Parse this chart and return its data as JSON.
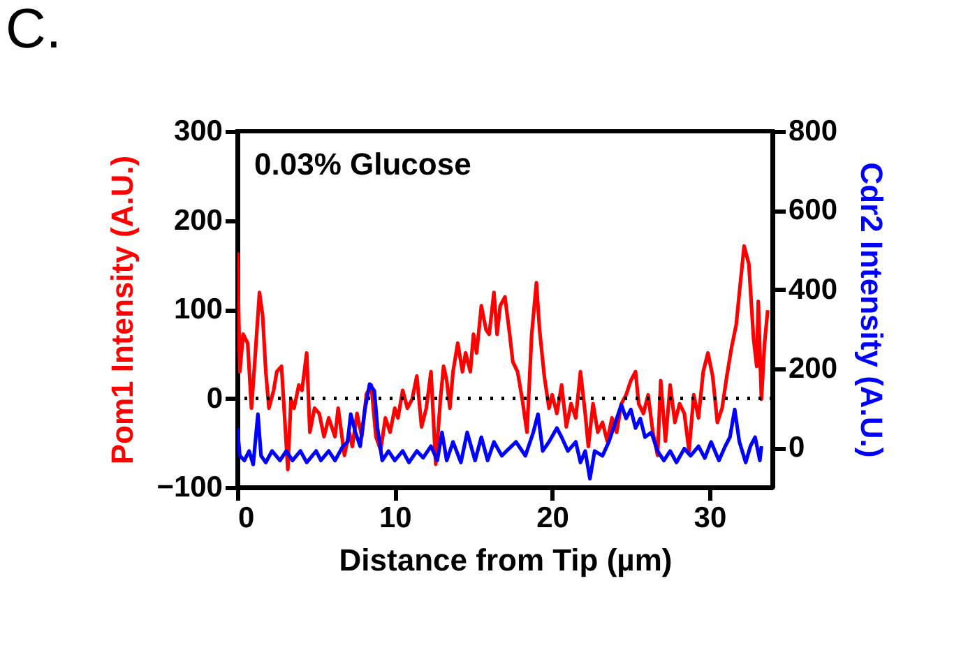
{
  "chart_data": {
    "type": "line",
    "title": "C.",
    "xlabel": "Distance from Tip (µm)",
    "ylabel": "Pom1 Intensity (A.U.)",
    "y2label": "Cdr2 Intensity (A.U.)",
    "annotations": [
      "0.03%  Glucose"
    ],
    "xlim": [
      0,
      34
    ],
    "xticks": [
      0,
      10,
      20,
      30
    ],
    "ylim": [
      -100,
      300
    ],
    "yticks": [
      -100,
      0,
      100,
      200,
      300
    ],
    "y2lim": [
      -100,
      800
    ],
    "y2ticks": [
      0,
      200,
      400,
      600,
      800
    ],
    "grid": false,
    "line_style": "solid",
    "marker": "none",
    "ref_lines": [
      {
        "axis": "y",
        "value": 0,
        "color": "#000000",
        "line_style": "dotted"
      }
    ],
    "series": [
      {
        "color": "#ff0000",
        "axis": "y",
        "x": [
          0,
          0.15,
          0.36,
          0.65,
          0.89,
          1.1,
          1.4,
          1.6,
          1.8,
          2.0,
          2.3,
          2.5,
          2.8,
          3.0,
          3.2,
          3.4,
          3.6,
          3.9,
          4.1,
          4.4,
          4.6,
          4.9,
          5.2,
          5.5,
          5.8,
          6.2,
          6.4,
          6.8,
          7.1,
          7.3,
          7.6,
          7.9,
          8.2,
          8.5,
          8.8,
          9.1,
          9.4,
          9.7,
          10.0,
          10.2,
          10.5,
          10.8,
          11.1,
          11.4,
          11.7,
          12.0,
          12.3,
          12.6,
          12.9,
          13.1,
          13.3,
          13.5,
          13.7,
          14.0,
          14.3,
          14.5,
          14.8,
          15.0,
          15.2,
          15.5,
          15.8,
          16.0,
          16.3,
          16.5,
          16.7,
          17.0,
          17.3,
          17.5,
          17.8,
          18.1,
          18.4,
          18.7,
          19.0,
          19.2,
          19.5,
          19.8,
          20.0,
          20.3,
          20.6,
          20.9,
          21.2,
          21.5,
          21.8,
          22.1,
          22.3,
          22.6,
          22.9,
          23.2,
          23.5,
          23.8,
          24.1,
          24.4,
          24.7,
          25.0,
          25.3,
          25.5,
          25.8,
          26.1,
          26.4,
          26.7,
          26.9,
          27.2,
          27.5,
          27.8,
          28.1,
          28.4,
          28.7,
          29.0,
          29.3,
          29.6,
          29.9,
          30.2,
          30.5,
          30.8,
          31.1,
          31.4,
          31.7,
          31.9,
          32.2,
          32.5,
          32.8,
          33.0,
          33.1,
          33.3,
          33.5,
          33.7
        ],
        "values": [
          164,
          30,
          72,
          62,
          -11,
          41,
          119,
          93,
          30,
          -11,
          9,
          30,
          36,
          -22,
          -80,
          -1,
          -11,
          15,
          9,
          51,
          -38,
          -11,
          -17,
          -43,
          -22,
          -43,
          -11,
          -64,
          -38,
          -54,
          -17,
          -43,
          5,
          15,
          -43,
          -58,
          -22,
          -38,
          -11,
          -22,
          9,
          -11,
          -1,
          25,
          -32,
          -11,
          30,
          -74,
          -1,
          36,
          20,
          -11,
          30,
          62,
          30,
          51,
          30,
          72,
          51,
          104,
          77,
          72,
          119,
          72,
          104,
          114,
          72,
          41,
          30,
          -1,
          -38,
          72,
          130,
          77,
          25,
          -11,
          4,
          -17,
          15,
          -32,
          -6,
          -22,
          30,
          -17,
          -54,
          -6,
          -38,
          -27,
          -48,
          -22,
          -38,
          -6,
          4,
          20,
          30,
          -6,
          -17,
          4,
          -38,
          -64,
          20,
          -48,
          15,
          -27,
          -6,
          -17,
          -59,
          4,
          -22,
          30,
          51,
          25,
          -27,
          -11,
          25,
          57,
          83,
          119,
          171,
          151,
          67,
          36,
          109,
          -1,
          62,
          99
        ]
      },
      {
        "color": "#0000ff",
        "axis": "y2",
        "x": [
          0,
          0.15,
          0.44,
          0.74,
          1.0,
          1.3,
          1.5,
          1.8,
          2.2,
          2.7,
          3.1,
          3.5,
          4.0,
          4.4,
          5.0,
          5.3,
          5.8,
          6.2,
          6.7,
          7.0,
          7.2,
          7.5,
          7.8,
          8.1,
          8.4,
          8.7,
          8.9,
          9.2,
          9.6,
          10.0,
          10.5,
          10.9,
          11.4,
          11.8,
          12.3,
          12.7,
          13.0,
          13.3,
          13.7,
          14.2,
          14.6,
          15.1,
          15.5,
          15.9,
          16.3,
          16.8,
          17.1,
          17.7,
          18.3,
          18.8,
          19.1,
          19.4,
          19.8,
          20.3,
          20.6,
          21.0,
          21.5,
          21.8,
          22.1,
          22.4,
          22.7,
          23.2,
          23.6,
          24.0,
          24.4,
          24.7,
          25.0,
          25.3,
          25.6,
          25.9,
          26.3,
          26.7,
          27.1,
          27.5,
          27.9,
          28.4,
          28.8,
          29.3,
          29.7,
          30.1,
          30.6,
          31.0,
          31.3,
          31.6,
          31.9,
          32.3,
          32.6,
          32.9,
          33.2,
          33.3
        ],
        "values": [
          50,
          -20,
          -32,
          -8,
          -42,
          85,
          -20,
          -37,
          -8,
          -32,
          -8,
          -32,
          -8,
          -37,
          -8,
          -32,
          -8,
          -32,
          4,
          15,
          85,
          39,
          4,
          97,
          161,
          144,
          50,
          -32,
          -8,
          -32,
          -8,
          -37,
          -8,
          -25,
          4,
          -32,
          39,
          -32,
          15,
          -37,
          39,
          -32,
          27,
          -32,
          15,
          -20,
          -8,
          15,
          -20,
          39,
          85,
          -8,
          15,
          50,
          27,
          -8,
          15,
          -37,
          -8,
          -78,
          -8,
          -20,
          15,
          62,
          109,
          74,
          97,
          50,
          74,
          27,
          39,
          -8,
          -32,
          -8,
          -37,
          -2,
          -20,
          4,
          -26,
          15,
          -32,
          4,
          27,
          97,
          15,
          -37,
          4,
          27,
          -32,
          4
        ]
      }
    ]
  }
}
